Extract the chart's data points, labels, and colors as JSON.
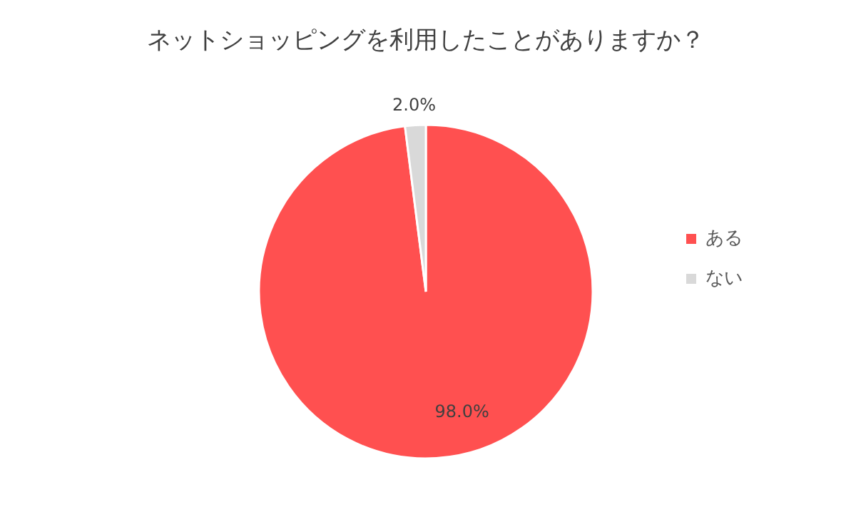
{
  "chart_data": {
    "type": "pie",
    "title": "ネットショッピングを利用したことがありますか？",
    "categories": [
      "ある",
      "ない"
    ],
    "values": [
      98.0,
      2.0
    ],
    "colors": [
      "#ff5050",
      "#d9d9d9"
    ],
    "value_labels": [
      "98.0%",
      "2.0%"
    ],
    "legend": "right"
  }
}
